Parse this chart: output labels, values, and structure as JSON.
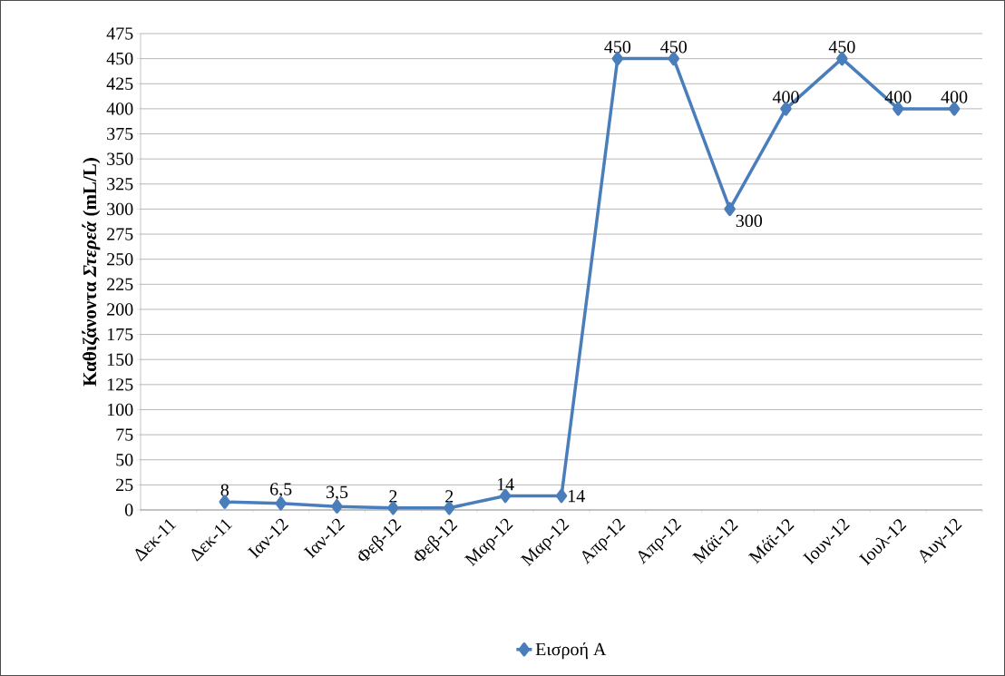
{
  "chart_data": {
    "type": "line",
    "ylabel": "Καθιζάνοντα *Στερεά* (mL/L)",
    "categories": [
      "Δεκ-11",
      "Δεκ-11",
      "Ιαν-12",
      "Ιαν-12",
      "Φεβ-12",
      "Φεβ-12",
      "Μαρ-12",
      "Μαρ-12",
      "Απρ-12",
      "Απρ-12",
      "Μάϊ-12",
      "Μάϊ-12",
      "Ιουν-12",
      "Ιουλ-12",
      "Αυγ-12"
    ],
    "series": [
      {
        "name": "Εισροή Α",
        "color": "#4a7ebb",
        "values": [
          null,
          8,
          6.5,
          3.5,
          2,
          2,
          14,
          14,
          450,
          450,
          300,
          400,
          450,
          400,
          400
        ],
        "value_labels": [
          null,
          "8",
          "6,5",
          "3,5",
          "2",
          "2",
          "14",
          "14",
          "450",
          "450",
          "300",
          "400",
          "450",
          "400",
          "400"
        ]
      }
    ],
    "ylim": [
      0,
      475
    ],
    "yticks": [
      0,
      25,
      50,
      75,
      100,
      125,
      150,
      175,
      200,
      225,
      250,
      275,
      300,
      325,
      350,
      375,
      400,
      425,
      450,
      475
    ],
    "grid": "y",
    "legend": "bottom",
    "marker": "diamond",
    "line_style": "solid"
  }
}
